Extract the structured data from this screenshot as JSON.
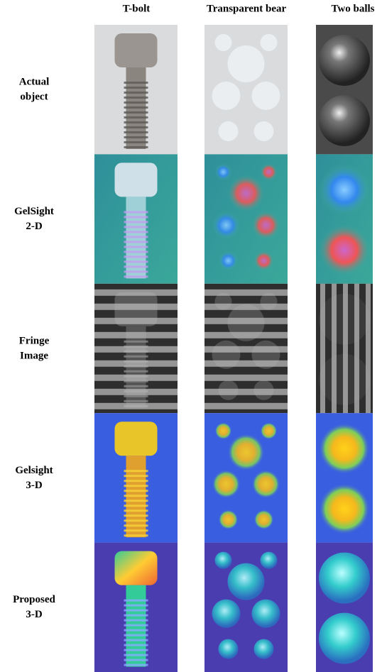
{
  "columns": [
    "T-bolt",
    "Transparent bear",
    "Two balls"
  ],
  "rows": [
    {
      "label": [
        "Actual",
        "object"
      ]
    },
    {
      "label": [
        "GelSight",
        "2-D"
      ]
    },
    {
      "label": [
        "Fringe",
        "Image"
      ]
    },
    {
      "label": [
        "Gelsight",
        "3-D"
      ]
    },
    {
      "label": [
        "Proposed",
        "3-D"
      ]
    }
  ]
}
